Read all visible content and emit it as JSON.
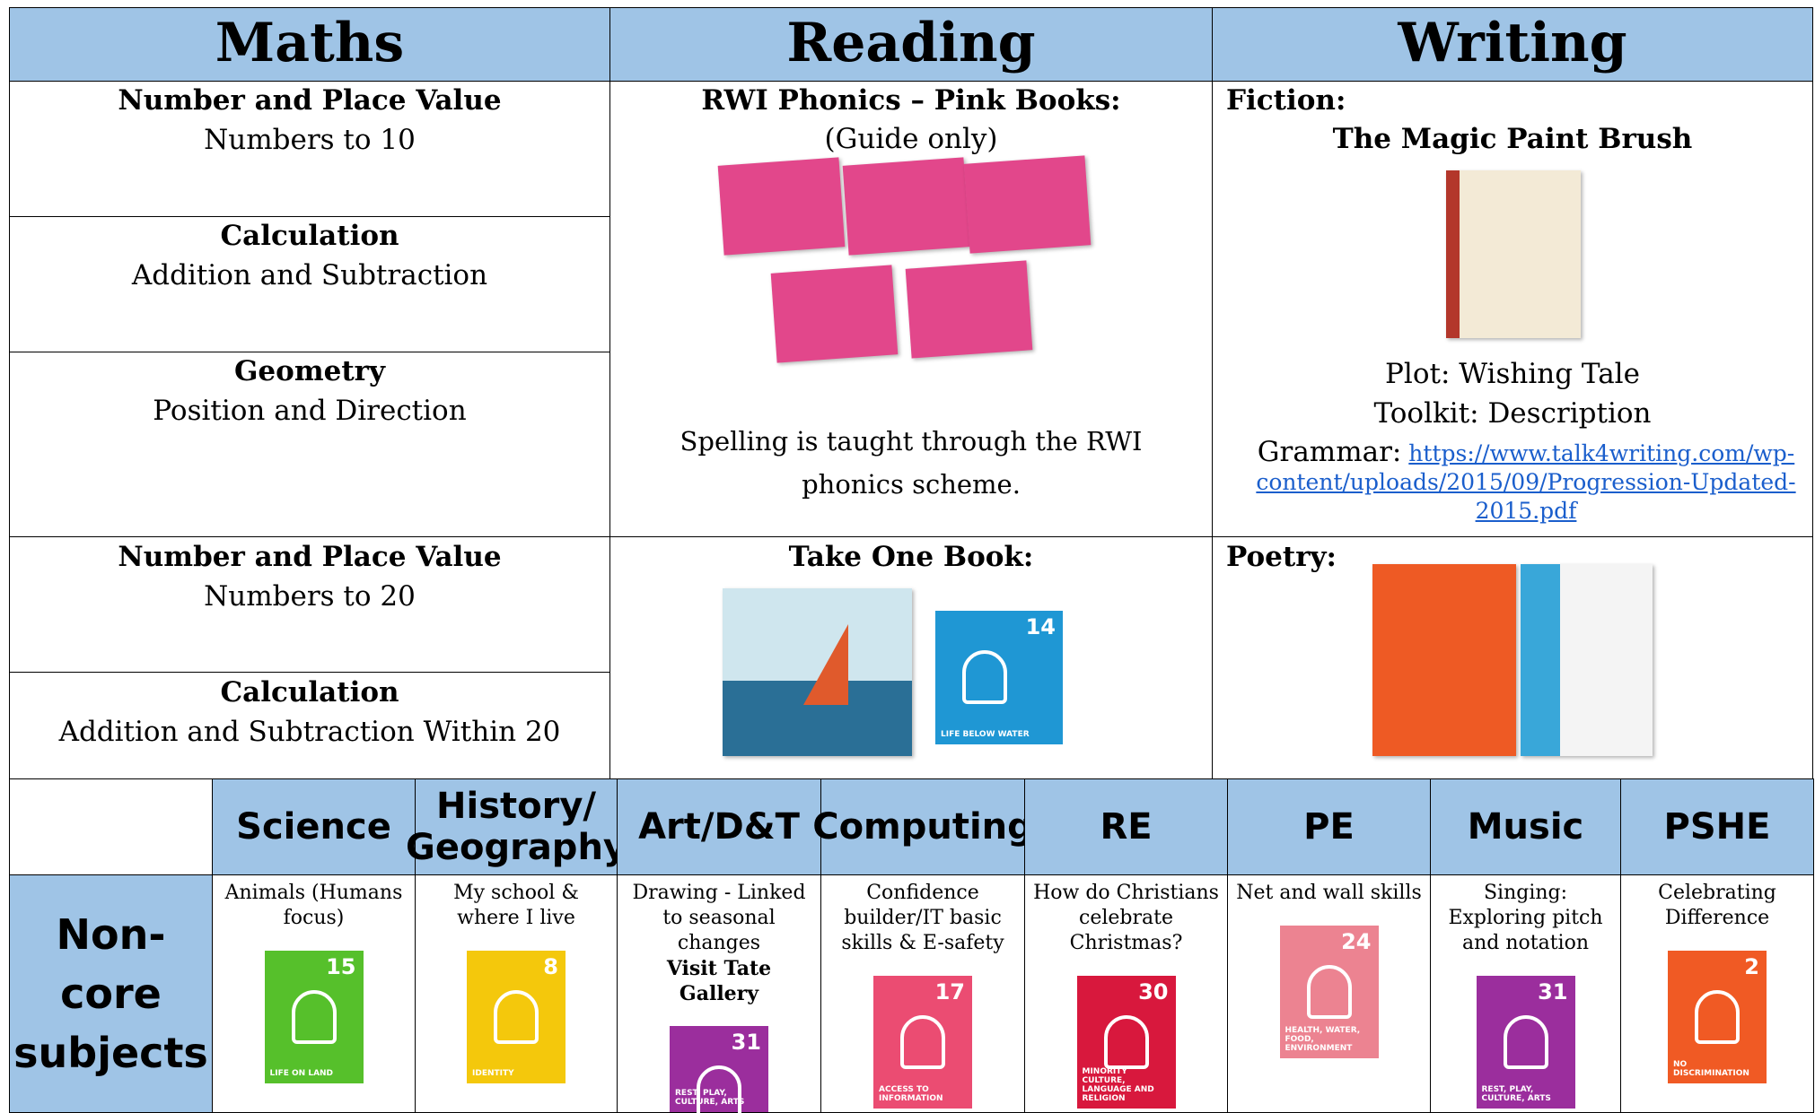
{
  "header": [
    "Maths",
    "Reading",
    "Writing"
  ],
  "maths": [
    {
      "title": "Number and Place Value",
      "subtitle": "Numbers to 10"
    },
    {
      "title": "Calculation",
      "subtitle": "Addition and Subtraction"
    },
    {
      "title": "Geometry",
      "subtitle": "Position and Direction"
    },
    {
      "title": "Number and Place Value",
      "subtitle": "Numbers to 20"
    },
    {
      "title": "Calculation",
      "subtitle": "Addition and Subtraction Within 20"
    }
  ],
  "reading": {
    "phonics_title": "RWI Phonics – Pink Books:",
    "phonics_note": "(Guide only)",
    "spelling": "Spelling is taught through the RWI phonics scheme.",
    "take_one_book": "Take One Book:",
    "icon": {
      "number": "14",
      "caption": "LIFE BELOW WATER",
      "color": "#1f97d4"
    }
  },
  "writing": {
    "fiction": "Fiction:",
    "book": "The Magic Paint Brush",
    "plot": "Plot: Wishing Tale",
    "toolkit": "Toolkit: Description",
    "grammar": "Grammar:",
    "link": "https://www.talk4writing.com/wp-content/uploads/2015/09/Progression-Updated-2015.pdf",
    "poetry": "Poetry:"
  },
  "non_core": {
    "label": "Non-\ncore\nsubjects",
    "subjects": [
      {
        "name": "Science",
        "text": "Animals (Humans focus)",
        "icon": {
          "number": "15",
          "caption": "LIFE ON LAND",
          "color": "#56c02b"
        }
      },
      {
        "name": "History/ Geography",
        "text": "My school & where I live",
        "icon": {
          "number": "8",
          "caption": "IDENTITY",
          "color": "#f4c80c"
        }
      },
      {
        "name": "Art/D&T",
        "text": "Drawing - Linked to seasonal changes",
        "note": "Visit Tate Gallery",
        "icon": {
          "number": "31",
          "caption": "REST, PLAY, CULTURE, ARTS",
          "color": "#9b2e9d"
        }
      },
      {
        "name": "Computing",
        "text": "Confidence builder/IT basic skills & E-safety",
        "icon": {
          "number": "17",
          "caption": "ACCESS TO INFORMATION",
          "color": "#eb4c72"
        }
      },
      {
        "name": "RE",
        "text": "How do Christians celebrate Christmas?",
        "icon": {
          "number": "30",
          "caption": "MINORITY CULTURE, LANGUAGE AND RELIGION",
          "color": "#d8183d"
        }
      },
      {
        "name": "PE",
        "text": "Net and wall skills",
        "icon": {
          "number": "24",
          "caption": "HEALTH, WATER, FOOD, ENVIRONMENT",
          "color": "#ec8391"
        }
      },
      {
        "name": "Music",
        "text": "Singing: Exploring pitch and notation",
        "icon": {
          "number": "31",
          "caption": "REST, PLAY, CULTURE, ARTS",
          "color": "#9b2e9d"
        }
      },
      {
        "name": "PSHE",
        "text": "Celebrating Difference",
        "icon": {
          "number": "2",
          "caption": "NO DISCRIMINATION",
          "color": "#f05a24"
        }
      }
    ]
  }
}
